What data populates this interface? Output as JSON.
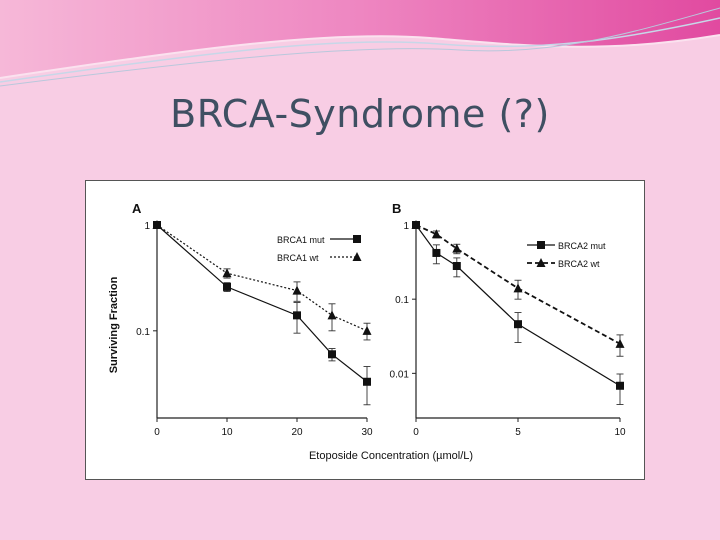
{
  "slide": {
    "title": "BRCA-Syndrome (?)",
    "background_color": "#f8cde4",
    "title_color": "#3f4f62"
  },
  "figure": {
    "shared_xlabel": "Etoposide Concentration (µmol/L)",
    "shared_ylabel": "Surviving Fraction"
  },
  "chart_data": [
    {
      "type": "line",
      "panel_label": "A",
      "title": "",
      "xlabel": "Etoposide Concentration (µmol/L)",
      "ylabel": "Surviving Fraction",
      "xlim": [
        0,
        30
      ],
      "ylim": [
        0.015,
        1.0
      ],
      "yscale": "log",
      "xticks": [
        0,
        10,
        20,
        30
      ],
      "xtick_labels": [
        "0",
        "10",
        "20",
        "30"
      ],
      "yticks": [
        1,
        0.1
      ],
      "ytick_labels": [
        "1",
        "0.1"
      ],
      "grid": false,
      "legend_position": "top-right",
      "series": [
        {
          "name": "BRCA1 mut",
          "marker": "square",
          "line": "solid",
          "x": [
            0,
            10,
            20,
            25,
            30
          ],
          "y": [
            1.0,
            0.26,
            0.14,
            0.06,
            0.033
          ],
          "err": [
            0.0,
            0.025,
            0.045,
            0.008,
            0.013
          ]
        },
        {
          "name": "BRCA1 wt",
          "marker": "triangle",
          "line": "dotted",
          "x": [
            0,
            10,
            20,
            25,
            30
          ],
          "y": [
            1.0,
            0.35,
            0.24,
            0.14,
            0.1
          ],
          "err": [
            0.0,
            0.035,
            0.05,
            0.04,
            0.018
          ]
        }
      ]
    },
    {
      "type": "line",
      "panel_label": "B",
      "title": "",
      "xlabel": "Etoposide Concentration (µmol/L)",
      "ylabel": "",
      "xlim": [
        0,
        10
      ],
      "ylim": [
        0.0025,
        1.0
      ],
      "yscale": "log",
      "xticks": [
        0,
        5,
        10
      ],
      "xtick_labels": [
        "0",
        "5",
        "10"
      ],
      "yticks": [
        1,
        0.1,
        0.01
      ],
      "ytick_labels": [
        "1",
        "0.1",
        "0.01"
      ],
      "grid": false,
      "legend_position": "top-right",
      "series": [
        {
          "name": "BRCA2 mut",
          "marker": "square",
          "line": "solid",
          "x": [
            0,
            1,
            2,
            5,
            10
          ],
          "y": [
            1.0,
            0.42,
            0.28,
            0.046,
            0.0068
          ],
          "err": [
            0.0,
            0.12,
            0.08,
            0.02,
            0.003
          ]
        },
        {
          "name": "BRCA2 wt",
          "marker": "triangle",
          "line": "dashed",
          "x": [
            0,
            1,
            2,
            5,
            10
          ],
          "y": [
            1.0,
            0.75,
            0.48,
            0.14,
            0.025
          ],
          "err": [
            0.0,
            0.08,
            0.07,
            0.04,
            0.008
          ]
        }
      ]
    }
  ]
}
